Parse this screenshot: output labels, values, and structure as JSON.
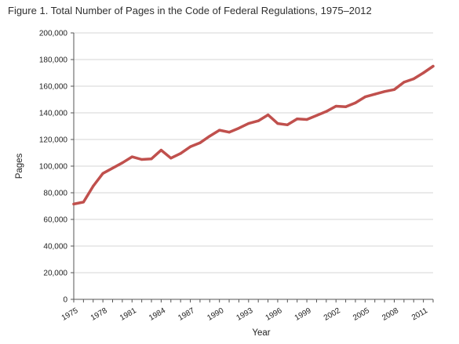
{
  "chart_data": {
    "type": "line",
    "title": "Figure 1. Total Number of Pages in the Code of Federal Regulations, 1975–2012",
    "xlabel": "Year",
    "ylabel": "Pages",
    "xlim": [
      1975,
      2012
    ],
    "ylim": [
      0,
      200000
    ],
    "y_ticks": [
      0,
      20000,
      40000,
      60000,
      80000,
      100000,
      120000,
      140000,
      160000,
      180000,
      200000
    ],
    "y_tick_labels": [
      "0",
      "20,000",
      "40,000",
      "60,000",
      "80,000",
      "100,000",
      "120,000",
      "140,000",
      "160,000",
      "180,000",
      "200,000"
    ],
    "x_tick_labels": [
      "1975",
      "1978",
      "1981",
      "1984",
      "1987",
      "1990",
      "1993",
      "1996",
      "1999",
      "2002",
      "2005",
      "2008",
      "2011"
    ],
    "grid": true,
    "legend": "none",
    "series_color": "#c0504d",
    "series": [
      {
        "x": [
          1975,
          1976,
          1977,
          1978,
          1979,
          1980,
          1981,
          1982,
          1983,
          1984,
          1985,
          1986,
          1987,
          1988,
          1989,
          1990,
          1991,
          1992,
          1993,
          1994,
          1995,
          1996,
          1997,
          1998,
          1999,
          2000,
          2001,
          2002,
          2003,
          2004,
          2005,
          2006,
          2007,
          2008,
          2009,
          2010,
          2011,
          2012
        ],
        "values": [
          71500,
          73000,
          85000,
          94500,
          98500,
          102500,
          107000,
          105000,
          105500,
          112000,
          106000,
          109500,
          114500,
          117500,
          122500,
          127000,
          125500,
          128500,
          132000,
          134000,
          138500,
          132000,
          131000,
          135500,
          135000,
          138000,
          141000,
          145000,
          144500,
          147500,
          152000,
          154000,
          156000,
          157500,
          163000,
          165500,
          170000,
          175000
        ]
      }
    ]
  }
}
